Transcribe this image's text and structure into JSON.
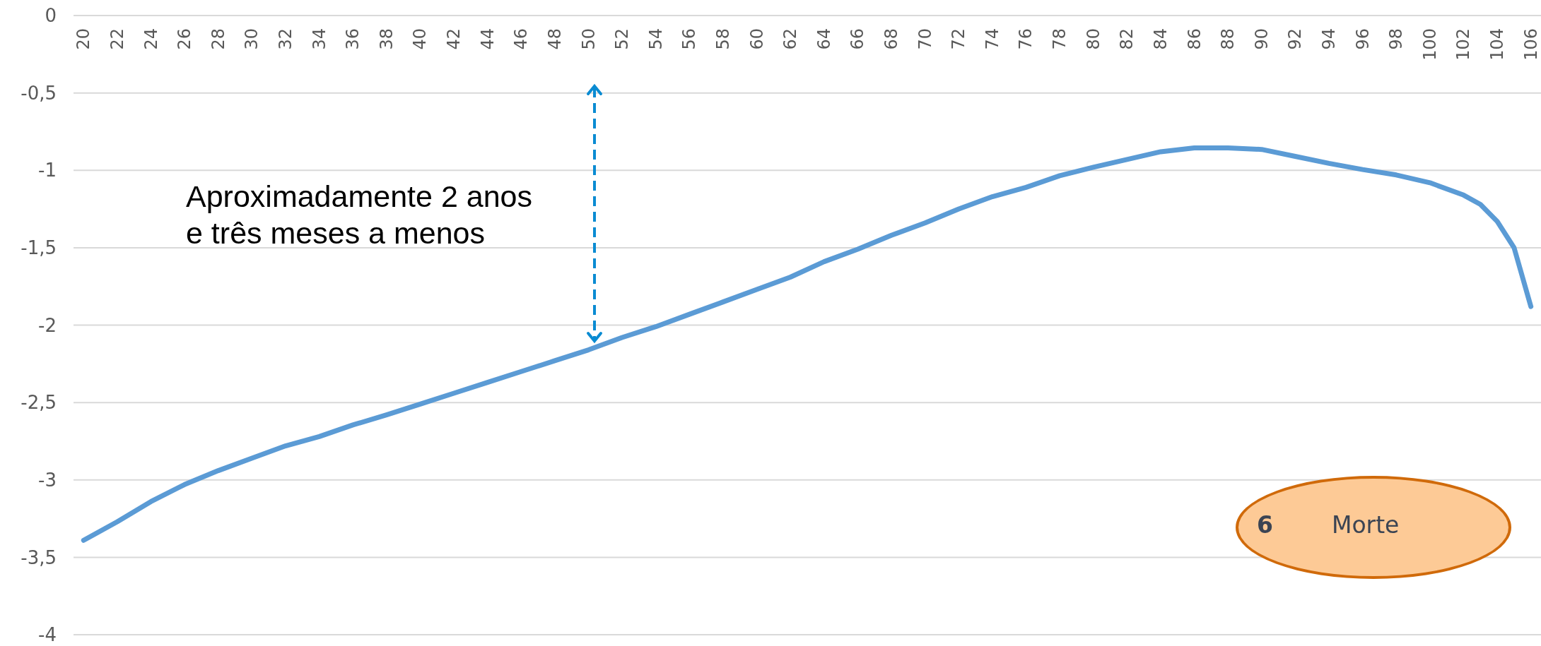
{
  "chart_data": {
    "type": "line",
    "x": [
      20,
      22,
      24,
      26,
      28,
      30,
      32,
      34,
      36,
      38,
      40,
      42,
      44,
      46,
      48,
      50,
      52,
      54,
      56,
      58,
      60,
      62,
      64,
      66,
      68,
      70,
      72,
      74,
      76,
      78,
      80,
      82,
      84,
      86,
      88,
      90,
      92,
      94,
      96,
      98,
      100,
      102,
      103,
      104,
      105,
      106
    ],
    "series": [
      {
        "color": "#5b9bd5",
        "values": [
          -3.39,
          -3.27,
          -3.14,
          -3.03,
          -2.94,
          -2.86,
          -2.78,
          -2.72,
          -2.645,
          -2.58,
          -2.51,
          -2.44,
          -2.37,
          -2.3,
          -2.23,
          -2.16,
          -2.08,
          -2.01,
          -1.93,
          -1.85,
          -1.77,
          -1.69,
          -1.59,
          -1.51,
          -1.42,
          -1.34,
          -1.25,
          -1.17,
          -1.11,
          -1.035,
          -0.98,
          -0.93,
          -0.88,
          -0.855,
          -0.855,
          -0.865,
          -0.91,
          -0.955,
          -0.995,
          -1.03,
          -1.08,
          -1.16,
          -1.22,
          -1.33,
          -1.5,
          -1.88
        ]
      }
    ],
    "xlim": [
      19.4,
      106.6
    ],
    "xticks": [
      20,
      22,
      24,
      26,
      28,
      30,
      32,
      34,
      36,
      38,
      40,
      42,
      44,
      46,
      48,
      50,
      52,
      54,
      56,
      58,
      60,
      62,
      64,
      66,
      68,
      70,
      72,
      74,
      76,
      78,
      80,
      82,
      84,
      86,
      88,
      90,
      92,
      94,
      96,
      98,
      100,
      102,
      104,
      106
    ],
    "ylim": [
      -4,
      0
    ],
    "yticks": [
      0,
      {
        "value": -0.5,
        "label": "-0,5"
      },
      -1,
      {
        "value": -1.5,
        "label": "-1,5"
      },
      -2,
      {
        "value": -2.5,
        "label": "-2,5"
      },
      -3,
      {
        "value": -3.5,
        "label": "-3,5"
      },
      -4
    ],
    "grid": "y",
    "legend": false,
    "marker": "none",
    "line_style": "solid",
    "annotations": [
      "Aproximadamente 2 anos\ne três meses a menos",
      "6",
      "Morte"
    ]
  }
}
